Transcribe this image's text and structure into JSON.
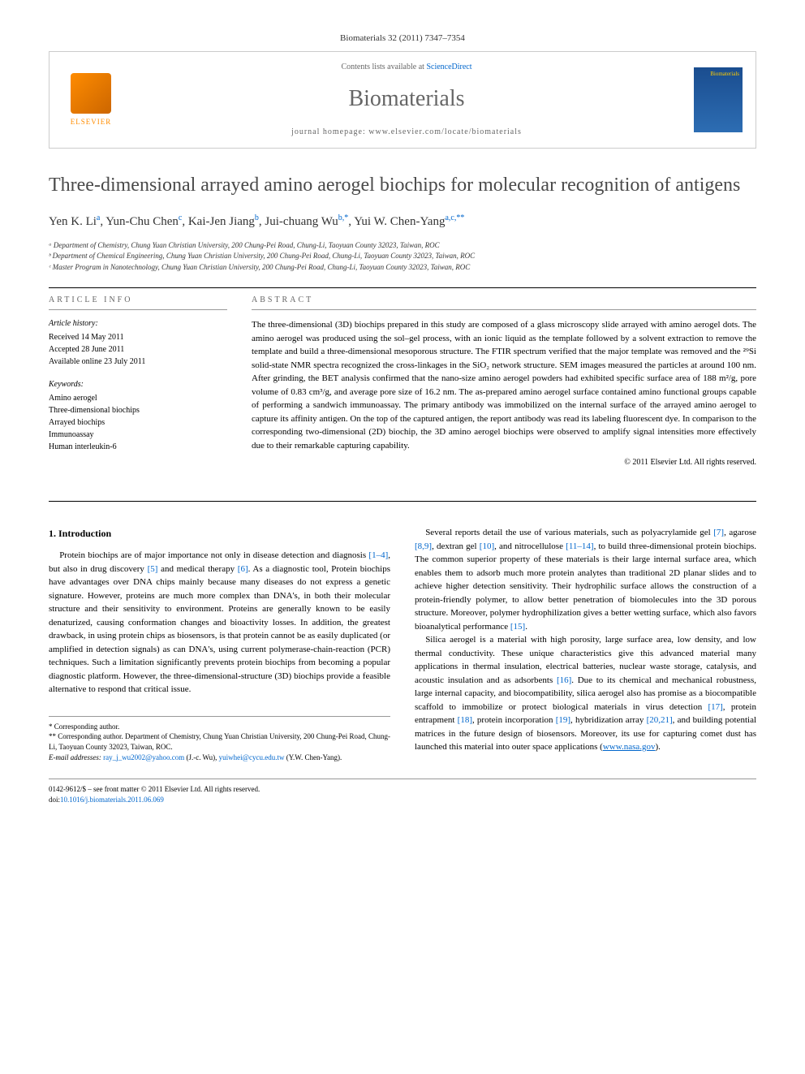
{
  "citation": "Biomaterials 32 (2011) 7347–7354",
  "header": {
    "contents_prefix": "Contents lists available at ",
    "contents_link": "ScienceDirect",
    "journal_name": "Biomaterials",
    "homepage_prefix": "journal homepage: ",
    "homepage_url": "www.elsevier.com/locate/biomaterials",
    "elsevier_label": "ELSEVIER",
    "cover_label": "Biomaterials"
  },
  "title": "Three-dimensional arrayed amino aerogel biochips for molecular recognition of antigens",
  "authors_html": "Yen K. Li<sup>a</sup>, Yun-Chu Chen<sup>c</sup>, Kai-Jen Jiang<sup>b</sup>, Jui-chuang Wu<sup>b,*</sup>, Yui W. Chen-Yang<sup>a,c,**</sup>",
  "affiliations": [
    "ᵃ Department of Chemistry, Chung Yuan Christian University, 200 Chung-Pei Road, Chung-Li, Taoyuan County 32023, Taiwan, ROC",
    "ᵇ Department of Chemical Engineering, Chung Yuan Christian University, 200 Chung-Pei Road, Chung-Li, Taoyuan County 32023, Taiwan, ROC",
    "ᶜ Master Program in Nanotechnology, Chung Yuan Christian University, 200 Chung-Pei Road, Chung-Li, Taoyuan County 32023, Taiwan, ROC"
  ],
  "article_info_header": "ARTICLE INFO",
  "abstract_header": "ABSTRACT",
  "history": {
    "label": "Article history:",
    "received": "Received 14 May 2011",
    "accepted": "Accepted 28 June 2011",
    "online": "Available online 23 July 2011"
  },
  "keywords": {
    "label": "Keywords:",
    "items": [
      "Amino aerogel",
      "Three-dimensional biochips",
      "Arrayed biochips",
      "Immunoassay",
      "Human interleukin-6"
    ]
  },
  "abstract": "The three-dimensional (3D) biochips prepared in this study are composed of a glass microscopy slide arrayed with amino aerogel dots. The amino aerogel was produced using the sol–gel process, with an ionic liquid as the template followed by a solvent extraction to remove the template and build a three-dimensional mesoporous structure. The FTIR spectrum verified that the major template was removed and the ²⁹Si solid-state NMR spectra recognized the cross-linkages in the SiO₂ network structure. SEM images measured the particles at around 100 nm. After grinding, the BET analysis confirmed that the nano-size amino aerogel powders had exhibited specific surface area of 188 m²/g, pore volume of 0.83 cm³/g, and average pore size of 16.2 nm. The as-prepared amino aerogel surface contained amino functional groups capable of performing a sandwich immunoassay. The primary antibody was immobilized on the internal surface of the arrayed amino aerogel to capture its affinity antigen. On the top of the captured antigen, the report antibody was read its labeling fluorescent dye. In comparison to the corresponding two-dimensional (2D) biochip, the 3D amino aerogel biochips were observed to amplify signal intensities more effectively due to their remarkable capturing capability.",
  "copyright": "© 2011 Elsevier Ltd. All rights reserved.",
  "intro_heading": "1. Introduction",
  "body": {
    "left_p1": "Protein biochips are of major importance not only in disease detection and diagnosis [1–4], but also in drug discovery [5] and medical therapy [6]. As a diagnostic tool, Protein biochips have advantages over DNA chips mainly because many diseases do not express a genetic signature. However, proteins are much more complex than DNA's, in both their molecular structure and their sensitivity to environment. Proteins are generally known to be easily denaturized, causing conformation changes and bioactivity losses. In addition, the greatest drawback, in using protein chips as biosensors, is that protein cannot be as easily duplicated (or amplified in detection signals) as can DNA's, using current polymerase-chain-reaction (PCR) techniques. Such a limitation significantly prevents protein biochips from becoming a popular diagnostic platform. However, the three-dimensional-structure (3D) biochips provide a feasible alternative to respond that critical issue.",
    "right_p1": "Several reports detail the use of various materials, such as polyacrylamide gel [7], agarose [8,9], dextran gel [10], and nitrocellulose [11–14], to build three-dimensional protein biochips. The common superior property of these materials is their large internal surface area, which enables them to adsorb much more protein analytes than traditional 2D planar slides and to achieve higher detection sensitivity. Their hydrophilic surface allows the construction of a protein-friendly polymer, to allow better penetration of biomolecules into the 3D porous structure. Moreover, polymer hydrophilization gives a better wetting surface, which also favors bioanalytical performance [15].",
    "right_p2": "Silica aerogel is a material with high porosity, large surface area, low density, and low thermal conductivity. These unique characteristics give this advanced material many applications in thermal insulation, electrical batteries, nuclear waste storage, catalysis, and acoustic insulation and as adsorbents [16]. Due to its chemical and mechanical robustness, large internal capacity, and biocompatibility, silica aerogel also has promise as a biocompatible scaffold to immobilize or protect biological materials in virus detection [17], protein entrapment [18], protein incorporation [19], hybridization array [20,21], and building potential matrices in the future design of biosensors. Moreover, its use for capturing comet dust has launched this material into outer space applications (www.nasa.gov)."
  },
  "corr": {
    "star1": "* Corresponding author.",
    "star2": "** Corresponding author. Department of Chemistry, Chung Yuan Christian University, 200 Chung-Pei Road, Chung-Li, Taoyuan County 32023, Taiwan, ROC.",
    "email_label": "E-mail addresses: ",
    "email1": "ray_j_wu2002@yahoo.com",
    "email1_suffix": " (J.-c. Wu), ",
    "email2": "yuiwhei@cycu.edu.tw",
    "email2_suffix": " (Y.W. Chen-Yang)."
  },
  "footer": {
    "issn": "0142-9612/$ – see front matter © 2011 Elsevier Ltd. All rights reserved.",
    "doi_prefix": "doi:",
    "doi": "10.1016/j.biomaterials.2011.06.069"
  },
  "colors": {
    "link": "#0066cc",
    "journal_title": "#666666",
    "elsevier_orange": "#ff8c00",
    "border": "#cccccc",
    "text": "#000000"
  }
}
